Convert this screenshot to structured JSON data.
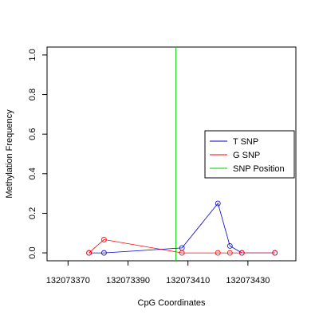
{
  "chart_data": {
    "type": "line",
    "title": "",
    "xlabel": "CpG Coordinates",
    "ylabel": "Methylation Frequency",
    "xlim": [
      132073363,
      132073446
    ],
    "ylim": [
      -0.04,
      1.04
    ],
    "x_ticks": [
      132073370,
      132073390,
      132073410,
      132073430
    ],
    "x_tick_labels": [
      "132073370",
      "132073390",
      "132073410",
      "132073430"
    ],
    "y_ticks": [
      0.0,
      0.2,
      0.4,
      0.6,
      0.8,
      1.0
    ],
    "y_tick_labels": [
      "0.0",
      "0.2",
      "0.4",
      "0.6",
      "0.8",
      "1.0"
    ],
    "grid": false,
    "legend_position": "right",
    "series": [
      {
        "name": "T SNP",
        "color": "#0000cc",
        "x": [
          132073377,
          132073382,
          132073408,
          132073420,
          132073424,
          132073428,
          132073439
        ],
        "y": [
          0.0,
          0.0,
          0.025,
          0.25,
          0.035,
          0.0,
          0.0
        ]
      },
      {
        "name": "G SNP",
        "color": "#ff0000",
        "x": [
          132073377,
          132073382,
          132073408,
          132073420,
          132073424,
          132073428,
          132073439
        ],
        "y": [
          0.0,
          0.067,
          0.0,
          0.0,
          0.0,
          0.0,
          0.0
        ]
      }
    ],
    "vlines": [
      {
        "name": "SNP Position",
        "color": "#00cc00",
        "x": 132073406
      }
    ],
    "legend": [
      {
        "label": "T SNP",
        "color": "#0000cc"
      },
      {
        "label": "G SNP",
        "color": "#ff0000"
      },
      {
        "label": "SNP Position",
        "color": "#00cc00"
      }
    ]
  }
}
